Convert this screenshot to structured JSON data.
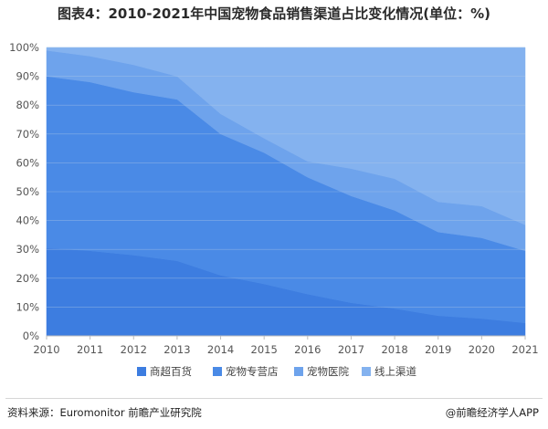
{
  "title": "图表4：2010-2021年中国宠物食品销售渠道占比变化情况(单位：%)",
  "source": "资料来源：Euromonitor 前瞻产业研究院",
  "credit": "@前瞻经济学人APP",
  "colors": {
    "series": [
      "#3d7de0",
      "#4a8ae6",
      "#6ea3ec",
      "#84b2ef"
    ],
    "grid": "#b8cde8",
    "axis": "#bdbdbd"
  },
  "chart_data": {
    "type": "area",
    "stacked": true,
    "x": [
      "2010",
      "2011",
      "2012",
      "2013",
      "2014",
      "2015",
      "2016",
      "2017",
      "2018",
      "2019",
      "2020",
      "2021"
    ],
    "yticks": [
      "0%",
      "10%",
      "20%",
      "30%",
      "40%",
      "50%",
      "60%",
      "70%",
      "80%",
      "90%",
      "100%"
    ],
    "ylim": [
      0,
      100
    ],
    "grid": true,
    "legend_position": "bottom",
    "series": [
      {
        "name": "商超百货",
        "values": [
          30.5,
          29.5,
          28,
          26,
          21,
          18,
          14.5,
          11.5,
          9.5,
          7,
          6,
          4.5
        ]
      },
      {
        "name": "宠物专营店",
        "values": [
          59.5,
          58.5,
          56.5,
          56,
          49,
          45.5,
          40.5,
          37,
          34,
          29,
          28,
          25
        ]
      },
      {
        "name": "宠物医院",
        "values": [
          9,
          9,
          9.5,
          8,
          7,
          5,
          5.5,
          9.5,
          11,
          10.5,
          11,
          9
        ]
      },
      {
        "name": "线上渠道",
        "values": [
          1,
          3,
          6,
          10,
          23,
          31.5,
          39.5,
          42,
          45.5,
          53.5,
          55,
          61.5
        ]
      }
    ]
  }
}
